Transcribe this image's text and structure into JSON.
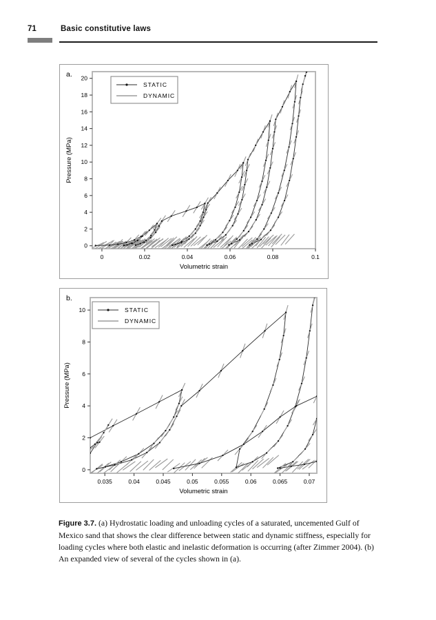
{
  "page": {
    "number": "71",
    "header": "Basic constitutive laws"
  },
  "caption": {
    "label": "Figure 3.7.",
    "text": "(a) Hydrostatic loading and unloading cycles of a saturated, uncemented Gulf of Mexico sand that shows the clear difference between static and dynamic stiffness, especially for loading cycles where both elastic and inelastic deformation is occurring (after Zimmer 2004). (b) An expanded view of several of the cycles shown in (a)."
  },
  "legend": {
    "static_label": "STATIC",
    "dynamic_label": "DYNAMIC"
  },
  "colors": {
    "static": "#2b2b2b",
    "dynamic": "#9b9b9b",
    "marker": "#111111",
    "plot_border": "#b0b0b0",
    "tick": "#333333",
    "text": "#000000",
    "legend_border": "#8a8a8a"
  },
  "chart_data": [
    {
      "id": "a",
      "panel_label": "a.",
      "type": "line",
      "title": "",
      "xlabel": "Volumetric strain",
      "ylabel": "Pressure (MPa)",
      "xlim": [
        -0.0045,
        0.1
      ],
      "ylim": [
        -0.35,
        20.8
      ],
      "xticks": [
        0,
        0.02,
        0.04,
        0.06,
        0.08,
        0.1
      ],
      "xtick_labels": [
        "0",
        "0.02",
        "0.04",
        "0.06",
        "0.08",
        "0.1"
      ],
      "yticks": [
        0,
        2,
        4,
        6,
        8,
        10,
        12,
        14,
        16,
        18,
        20
      ],
      "ytick_labels": [
        "0",
        "2",
        "4",
        "6",
        "8",
        "10",
        "12",
        "14",
        "16",
        "18",
        "20"
      ],
      "series": [
        {
          "name": "STATIC"
        },
        {
          "name": "DYNAMIC"
        }
      ],
      "static_branches": [
        [
          [
            -0.003,
            0.03
          ],
          [
            0.0035,
            0.08
          ],
          [
            0.0075,
            0.18
          ],
          [
            0.0115,
            0.38
          ],
          [
            0.0152,
            0.7
          ],
          [
            0.0183,
            1.1
          ]
        ],
        [
          [
            0.0183,
            1.1
          ],
          [
            0.0166,
            0.62
          ],
          [
            0.0143,
            0.28
          ],
          [
            0.0118,
            0.1
          ],
          [
            0.0103,
            0.05
          ]
        ],
        [
          [
            0.0103,
            0.05
          ],
          [
            0.0138,
            0.3
          ],
          [
            0.0168,
            0.68
          ],
          [
            0.019,
            1.15
          ],
          [
            0.0222,
            1.85
          ],
          [
            0.0258,
            2.65
          ]
        ],
        [
          [
            0.0258,
            2.65
          ],
          [
            0.0247,
            1.9
          ],
          [
            0.023,
            1.2
          ],
          [
            0.0207,
            0.62
          ],
          [
            0.018,
            0.25
          ],
          [
            0.0158,
            0.08
          ]
        ],
        [
          [
            0.0158,
            0.08
          ],
          [
            0.0198,
            0.42
          ],
          [
            0.0228,
            0.95
          ],
          [
            0.0252,
            1.6
          ],
          [
            0.0268,
            2.35
          ],
          [
            0.028,
            2.95
          ],
          [
            0.0325,
            3.55
          ],
          [
            0.0395,
            4.15
          ],
          [
            0.0445,
            4.6
          ],
          [
            0.0482,
            5.05
          ]
        ],
        [
          [
            0.0482,
            5.05
          ],
          [
            0.0474,
            4.0
          ],
          [
            0.046,
            2.95
          ],
          [
            0.0438,
            2.0
          ],
          [
            0.0409,
            1.15
          ],
          [
            0.0374,
            0.5
          ],
          [
            0.0344,
            0.16
          ],
          [
            0.033,
            0.06
          ]
        ],
        [
          [
            0.033,
            0.06
          ],
          [
            0.0372,
            0.35
          ],
          [
            0.0408,
            0.8
          ],
          [
            0.0438,
            1.5
          ],
          [
            0.046,
            2.4
          ],
          [
            0.0476,
            3.4
          ],
          [
            0.0488,
            4.3
          ],
          [
            0.0496,
            5.1
          ],
          [
            0.054,
            6.3
          ],
          [
            0.059,
            7.8
          ],
          [
            0.0635,
            9.0
          ],
          [
            0.0662,
            9.9
          ]
        ],
        [
          [
            0.0662,
            9.9
          ],
          [
            0.0655,
            8.2
          ],
          [
            0.0643,
            6.4
          ],
          [
            0.0624,
            4.6
          ],
          [
            0.0598,
            3.0
          ],
          [
            0.0566,
            1.6
          ],
          [
            0.0532,
            0.7
          ],
          [
            0.0504,
            0.2
          ],
          [
            0.0492,
            0.08
          ]
        ],
        [
          [
            0.0492,
            0.08
          ],
          [
            0.054,
            0.55
          ],
          [
            0.058,
            1.3
          ],
          [
            0.0612,
            2.4
          ],
          [
            0.0637,
            3.8
          ],
          [
            0.0656,
            5.5
          ],
          [
            0.0669,
            7.3
          ],
          [
            0.0678,
            9.0
          ],
          [
            0.0684,
            10.3
          ],
          [
            0.072,
            12.0
          ],
          [
            0.0755,
            13.6
          ],
          [
            0.0787,
            14.9
          ]
        ],
        [
          [
            0.0787,
            14.9
          ],
          [
            0.078,
            12.6
          ],
          [
            0.0768,
            10.2
          ],
          [
            0.075,
            7.7
          ],
          [
            0.0726,
            5.4
          ],
          [
            0.0697,
            3.4
          ],
          [
            0.0664,
            1.8
          ],
          [
            0.0632,
            0.8
          ],
          [
            0.0607,
            0.25
          ],
          [
            0.0595,
            0.1
          ]
        ],
        [
          [
            0.0595,
            0.1
          ],
          [
            0.0645,
            0.7
          ],
          [
            0.0687,
            1.7
          ],
          [
            0.0722,
            3.1
          ],
          [
            0.075,
            4.9
          ],
          [
            0.0772,
            7.0
          ],
          [
            0.0788,
            9.3
          ],
          [
            0.08,
            11.6
          ],
          [
            0.0808,
            13.6
          ],
          [
            0.0814,
            15.1
          ],
          [
            0.0845,
            16.6
          ],
          [
            0.088,
            18.4
          ],
          [
            0.091,
            19.65
          ]
        ],
        [
          [
            0.091,
            19.65
          ],
          [
            0.0903,
            17.2
          ],
          [
            0.0892,
            14.6
          ],
          [
            0.0876,
            11.8
          ],
          [
            0.0854,
            9.0
          ],
          [
            0.0826,
            6.3
          ],
          [
            0.0793,
            3.9
          ],
          [
            0.0759,
            2.0
          ],
          [
            0.0727,
            0.8
          ],
          [
            0.0703,
            0.25
          ],
          [
            0.0692,
            0.1
          ]
        ],
        [
          [
            0.0692,
            0.1
          ],
          [
            0.0745,
            0.75
          ],
          [
            0.079,
            1.85
          ],
          [
            0.0826,
            3.4
          ],
          [
            0.0855,
            5.4
          ],
          [
            0.0878,
            7.8
          ],
          [
            0.0896,
            10.4
          ],
          [
            0.091,
            13.0
          ],
          [
            0.0921,
            15.5
          ],
          [
            0.093,
            17.7
          ],
          [
            0.0941,
            19.3
          ],
          [
            0.0952,
            20.3
          ],
          [
            0.0958,
            20.75
          ]
        ]
      ],
      "dynamic_rule": {
        "base": 260,
        "per_mpa": 35,
        "every": 1
      },
      "dynamic_fans": [
        {
          "x0": -0.002,
          "x1": 0.01,
          "y0": 0.04,
          "y1": 0.16,
          "n": 9,
          "slope": 150,
          "jy": 0.06
        },
        {
          "x0": 0.006,
          "x1": 0.018,
          "y0": 0.06,
          "y1": 0.28,
          "n": 10,
          "slope": 170,
          "jy": 0.07
        },
        {
          "x0": 0.013,
          "x1": 0.026,
          "y0": 0.07,
          "y1": 0.4,
          "n": 11,
          "slope": 190,
          "jy": 0.08
        },
        {
          "x0": 0.021,
          "x1": 0.034,
          "y0": 0.08,
          "y1": 0.5,
          "n": 11,
          "slope": 210,
          "jy": 0.09
        },
        {
          "x0": 0.03,
          "x1": 0.047,
          "y0": 0.09,
          "y1": 0.6,
          "n": 12,
          "slope": 230,
          "jy": 0.1
        },
        {
          "x0": 0.047,
          "x1": 0.064,
          "y0": 0.09,
          "y1": 0.65,
          "n": 12,
          "slope": 250,
          "jy": 0.1
        },
        {
          "x0": 0.058,
          "x1": 0.082,
          "y0": 0.1,
          "y1": 0.75,
          "n": 13,
          "slope": 260,
          "jy": 0.11
        },
        {
          "x0": 0.068,
          "x1": 0.088,
          "y0": 0.1,
          "y1": 0.8,
          "n": 10,
          "slope": 270,
          "jy": 0.11
        }
      ]
    },
    {
      "id": "b",
      "panel_label": "b.",
      "type": "line",
      "title": "",
      "xlabel": "Volumetric strain",
      "ylabel": "Pressure (MPa)",
      "xlim": [
        0.0325,
        0.0713
      ],
      "ylim": [
        -0.22,
        10.78
      ],
      "xticks": [
        0.035,
        0.04,
        0.045,
        0.05,
        0.055,
        0.06,
        0.065,
        0.07
      ],
      "xtick_labels": [
        "0.035",
        "0.04",
        "0.045",
        "0.05",
        "0.055",
        "0.06",
        "0.065",
        "0.07"
      ],
      "yticks": [
        0,
        2,
        4,
        6,
        8,
        10
      ],
      "ytick_labels": [
        "0",
        "2",
        "4",
        "6",
        "8",
        "10"
      ],
      "series": [
        {
          "name": "STATIC"
        },
        {
          "name": "DYNAMIC"
        }
      ],
      "static_branches": [
        [
          [
            0.0325,
            1.38
          ],
          [
            0.0333,
            1.6
          ],
          [
            0.0341,
            1.73
          ]
        ],
        [
          [
            0.0325,
            1.04
          ],
          [
            0.0337,
            1.7
          ],
          [
            0.0348,
            2.32
          ],
          [
            0.0356,
            2.8
          ]
        ],
        [
          [
            0.0325,
            2.0
          ],
          [
            0.0364,
            2.75
          ],
          [
            0.0404,
            3.5
          ],
          [
            0.0443,
            4.25
          ],
          [
            0.0482,
            5.0
          ]
        ],
        [
          [
            0.0482,
            5.0
          ],
          [
            0.0477,
            4.15
          ],
          [
            0.0468,
            3.3
          ],
          [
            0.0454,
            2.45
          ],
          [
            0.0434,
            1.65
          ],
          [
            0.0408,
            1.0
          ],
          [
            0.0378,
            0.5
          ],
          [
            0.0351,
            0.18
          ],
          [
            0.0336,
            0.06
          ]
        ],
        [
          [
            0.0336,
            0.06
          ],
          [
            0.0367,
            0.3
          ],
          [
            0.0396,
            0.62
          ],
          [
            0.0422,
            1.08
          ],
          [
            0.0444,
            1.7
          ],
          [
            0.0461,
            2.5
          ],
          [
            0.0473,
            3.35
          ],
          [
            0.0481,
            4.0
          ],
          [
            0.0512,
            4.95
          ],
          [
            0.0549,
            6.2
          ],
          [
            0.0586,
            7.45
          ],
          [
            0.0624,
            8.7
          ],
          [
            0.066,
            9.85
          ]
        ],
        [
          [
            0.066,
            9.85
          ],
          [
            0.0656,
            8.4
          ],
          [
            0.0649,
            6.9
          ],
          [
            0.0638,
            5.3
          ],
          [
            0.0623,
            3.8
          ],
          [
            0.0603,
            2.4
          ],
          [
            0.0581,
            1.3
          ],
          [
            0.0575,
            0.15
          ]
        ],
        [
          [
            0.0575,
            0.15
          ],
          [
            0.0603,
            0.5
          ],
          [
            0.0627,
            1.05
          ],
          [
            0.0647,
            1.8
          ],
          [
            0.0663,
            2.75
          ],
          [
            0.0676,
            3.95
          ],
          [
            0.0687,
            5.4
          ],
          [
            0.0695,
            7.0
          ],
          [
            0.0701,
            8.7
          ],
          [
            0.0706,
            10.3
          ],
          [
            0.0709,
            10.8
          ]
        ],
        [
          [
            0.0468,
            0.08
          ],
          [
            0.0512,
            0.4
          ],
          [
            0.0552,
            0.9
          ],
          [
            0.0588,
            1.6
          ],
          [
            0.062,
            2.4
          ],
          [
            0.065,
            3.3
          ],
          [
            0.0678,
            4.0
          ],
          [
            0.0713,
            4.6
          ]
        ],
        [
          [
            0.0646,
            0.1
          ],
          [
            0.0672,
            0.5
          ],
          [
            0.0693,
            1.3
          ],
          [
            0.0706,
            2.2
          ],
          [
            0.0713,
            3.2
          ]
        ],
        [
          [
            0.0713,
            0.52
          ],
          [
            0.0692,
            0.34
          ],
          [
            0.0669,
            0.22
          ],
          [
            0.065,
            0.1
          ]
        ]
      ],
      "dynamic_rule": {
        "base": 300,
        "per_mpa": 100,
        "every": 1
      },
      "dynamic_fans": [
        {
          "x0": 0.0336,
          "x1": 0.0458,
          "y0": 0.05,
          "y1": 0.38,
          "n": 12,
          "slope": 300,
          "jy": 0.06
        },
        {
          "x0": 0.0468,
          "x1": 0.0525,
          "y0": 0.08,
          "y1": 0.5,
          "n": 7,
          "slope": 320,
          "jy": 0.06
        },
        {
          "x0": 0.0578,
          "x1": 0.0638,
          "y0": 0.08,
          "y1": 0.55,
          "n": 8,
          "slope": 330,
          "jy": 0.06
        },
        {
          "x0": 0.0652,
          "x1": 0.0708,
          "y0": 0.05,
          "y1": 0.42,
          "n": 7,
          "slope": 320,
          "jy": 0.06
        }
      ]
    }
  ]
}
